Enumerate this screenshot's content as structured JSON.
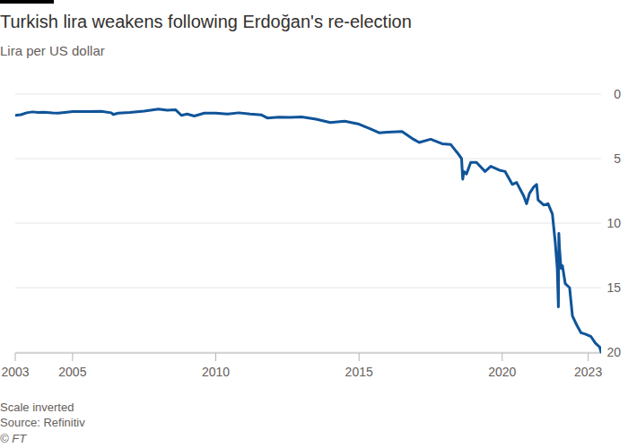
{
  "chart_data": {
    "type": "line",
    "title": "Turkish lira weakens following Erdoğan's re-election",
    "subtitle": "Lira per US dollar",
    "notes": [
      "Scale inverted",
      "Source: Refinitiv",
      "© FT"
    ],
    "color": "#0f5499",
    "grid": true,
    "xlim": [
      2003,
      2023.45
    ],
    "xticks": [
      2003,
      2005,
      2010,
      2015,
      2020,
      2023
    ],
    "ylim": [
      20,
      0
    ],
    "yticks": [
      0,
      5,
      10,
      15,
      20
    ],
    "x": [
      2003.0,
      2003.2,
      2003.4,
      2003.6,
      2003.8,
      2004.0,
      2004.3,
      2004.5,
      2004.8,
      2005.0,
      2005.5,
      2006.0,
      2006.35,
      2006.42,
      2006.6,
      2007.0,
      2007.5,
      2008.0,
      2008.3,
      2008.6,
      2008.8,
      2009.0,
      2009.25,
      2009.6,
      2010.0,
      2010.4,
      2010.8,
      2011.2,
      2011.6,
      2011.8,
      2012.2,
      2012.6,
      2013.0,
      2013.5,
      2014.0,
      2014.5,
      2015.0,
      2015.4,
      2015.7,
      2016.0,
      2016.5,
      2016.9,
      2017.1,
      2017.5,
      2017.9,
      2018.2,
      2018.45,
      2018.58,
      2018.62,
      2018.66,
      2018.75,
      2018.9,
      2019.1,
      2019.4,
      2019.6,
      2019.9,
      2020.1,
      2020.35,
      2020.5,
      2020.75,
      2020.85,
      2020.95,
      2021.1,
      2021.2,
      2021.25,
      2021.45,
      2021.6,
      2021.75,
      2021.85,
      2021.92,
      2021.96,
      2021.975,
      2022.0,
      2022.05,
      2022.1,
      2022.2,
      2022.35,
      2022.45,
      2022.6,
      2022.75,
      2022.9,
      2023.1,
      2023.25,
      2023.35,
      2023.4,
      2023.45
    ],
    "values": [
      1.65,
      1.6,
      1.45,
      1.38,
      1.42,
      1.4,
      1.45,
      1.47,
      1.4,
      1.35,
      1.36,
      1.34,
      1.45,
      1.58,
      1.48,
      1.42,
      1.32,
      1.17,
      1.25,
      1.22,
      1.65,
      1.55,
      1.7,
      1.48,
      1.48,
      1.55,
      1.45,
      1.55,
      1.62,
      1.85,
      1.78,
      1.8,
      1.77,
      1.95,
      2.2,
      2.1,
      2.33,
      2.7,
      3.0,
      2.95,
      2.9,
      3.5,
      3.75,
      3.5,
      3.85,
      3.9,
      4.6,
      5.0,
      6.6,
      6.0,
      6.2,
      5.3,
      5.3,
      6.0,
      5.6,
      5.9,
      6.0,
      7.0,
      6.85,
      7.9,
      8.5,
      7.7,
      7.2,
      7.0,
      8.2,
      8.6,
      8.5,
      9.3,
      11.5,
      13.5,
      16.5,
      10.8,
      12.0,
      13.5,
      13.3,
      14.7,
      15.0,
      17.2,
      17.9,
      18.5,
      18.6,
      18.8,
      19.3,
      19.5,
      19.6,
      20.0
    ]
  }
}
